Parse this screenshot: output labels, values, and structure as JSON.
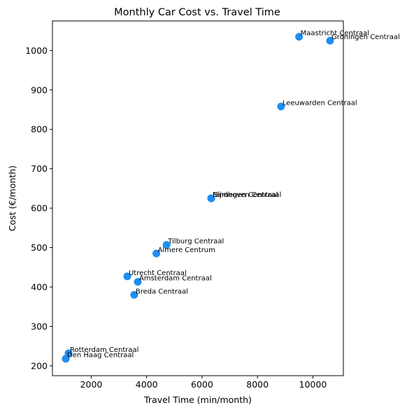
{
  "chart_data": {
    "type": "scatter",
    "title": "Monthly Car Cost vs. Travel Time",
    "xlabel": "Travel Time (min/month)",
    "ylabel": "Cost (€/month)",
    "xlim": [
      600,
      11100
    ],
    "ylim": [
      175,
      1075
    ],
    "xticks": [
      2000,
      4000,
      6000,
      8000,
      10000
    ],
    "yticks": [
      200,
      300,
      400,
      500,
      600,
      700,
      800,
      900,
      1000
    ],
    "grid": false,
    "legend": "none",
    "point_color": "#1f8ef1",
    "points": [
      {
        "label": "Maastricht Centraal",
        "x": 9500,
        "y": 1035
      },
      {
        "label": "Groningen Centraal",
        "x": 10620,
        "y": 1025
      },
      {
        "label": "Leeuwarden Centraal",
        "x": 8850,
        "y": 858
      },
      {
        "label": "Nijmegen Centraal",
        "x": 6330,
        "y": 625
      },
      {
        "label": "Eindhoven Centraal",
        "x": 6330,
        "y": 625
      },
      {
        "label": "Tilburg Centraal",
        "x": 4720,
        "y": 507
      },
      {
        "label": "Almere Centrum",
        "x": 4350,
        "y": 485
      },
      {
        "label": "Utrecht Centraal",
        "x": 3300,
        "y": 427
      },
      {
        "label": "Amsterdam Centraal",
        "x": 3680,
        "y": 413
      },
      {
        "label": "Breda Centraal",
        "x": 3550,
        "y": 380
      },
      {
        "label": "Rotterdam Centraal",
        "x": 1180,
        "y": 232
      },
      {
        "label": "Den Haag Centraal",
        "x": 1080,
        "y": 218
      }
    ]
  }
}
